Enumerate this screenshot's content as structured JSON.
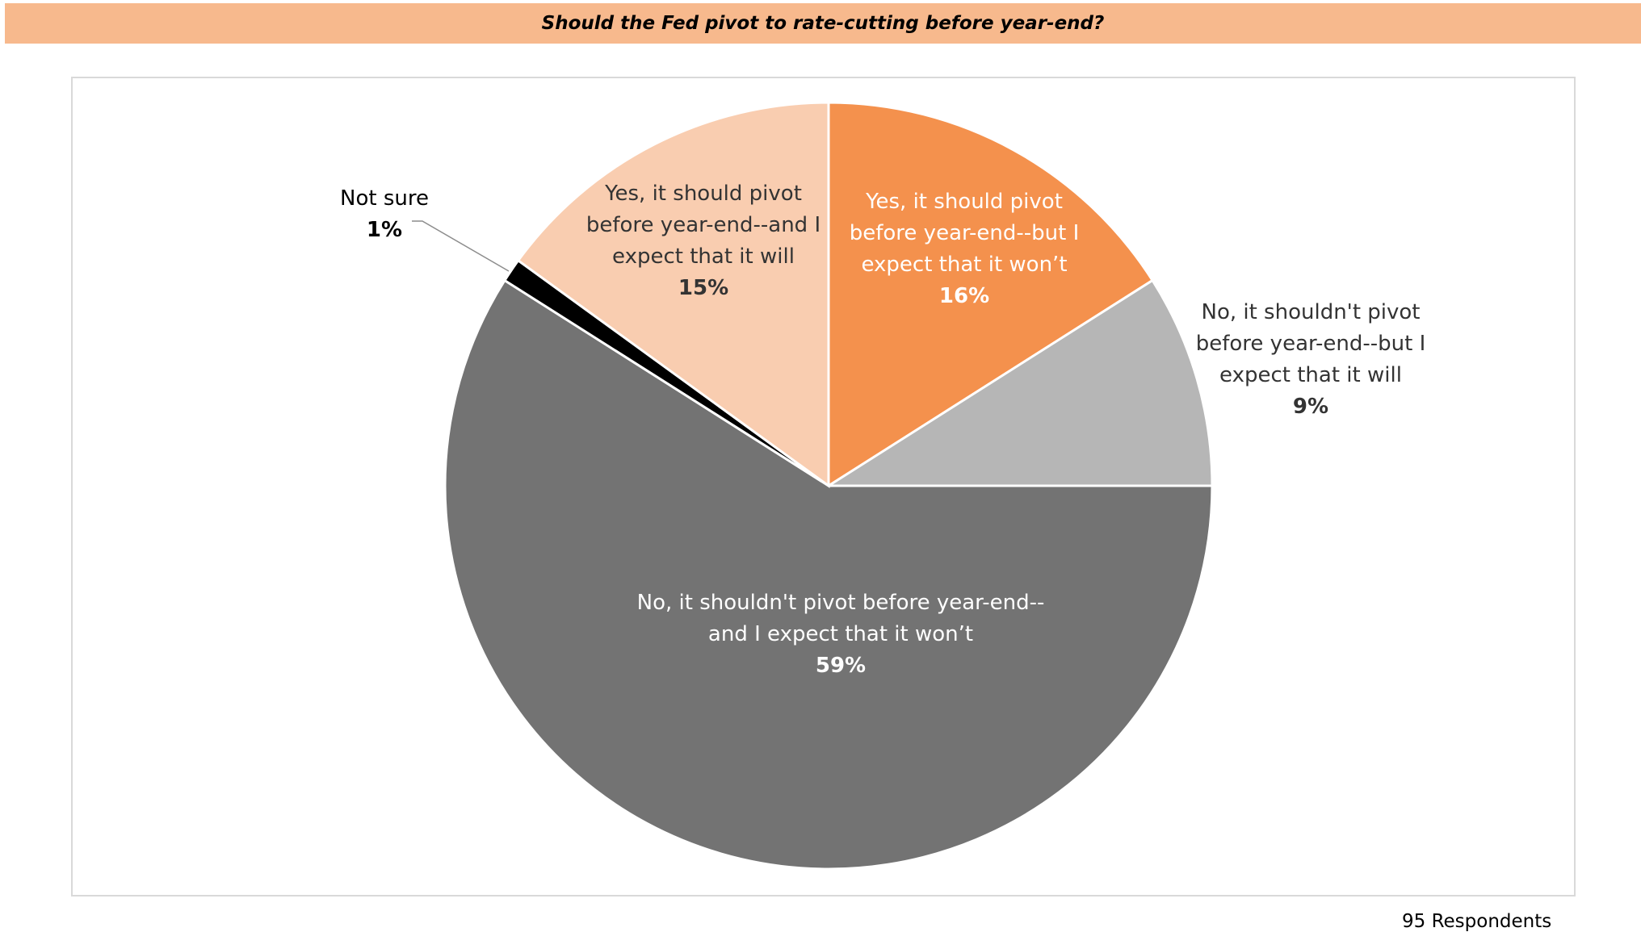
{
  "title": "Should the Fed pivot to rate-cutting before year-end?",
  "note": "95 Respondents",
  "chart_data": {
    "type": "pie",
    "title": "Should the Fed pivot to rate-cutting before year-end?",
    "slices": [
      {
        "label": [
          "Yes, it should pivot",
          "before year-end--but I",
          "expect that it won’t"
        ],
        "value": 16,
        "display": "16%",
        "color": "#f4914d"
      },
      {
        "label": [
          "No, it shouldn't pivot",
          "before year-end--but I",
          "expect that it will"
        ],
        "value": 9,
        "display": "9%",
        "color": "#b6b6b6"
      },
      {
        "label": [
          "No, it shouldn't pivot before year-end--",
          "and I expect that it won’t"
        ],
        "value": 59,
        "display": "59%",
        "color": "#737373"
      },
      {
        "label": [
          "Not sure"
        ],
        "value": 1,
        "display": "1%",
        "color": "#000000"
      },
      {
        "label": [
          "Yes, it should pivot",
          "before year-end--and I",
          "expect that it will"
        ],
        "value": 15,
        "display": "15%",
        "color": "#f9cdb0"
      }
    ]
  }
}
